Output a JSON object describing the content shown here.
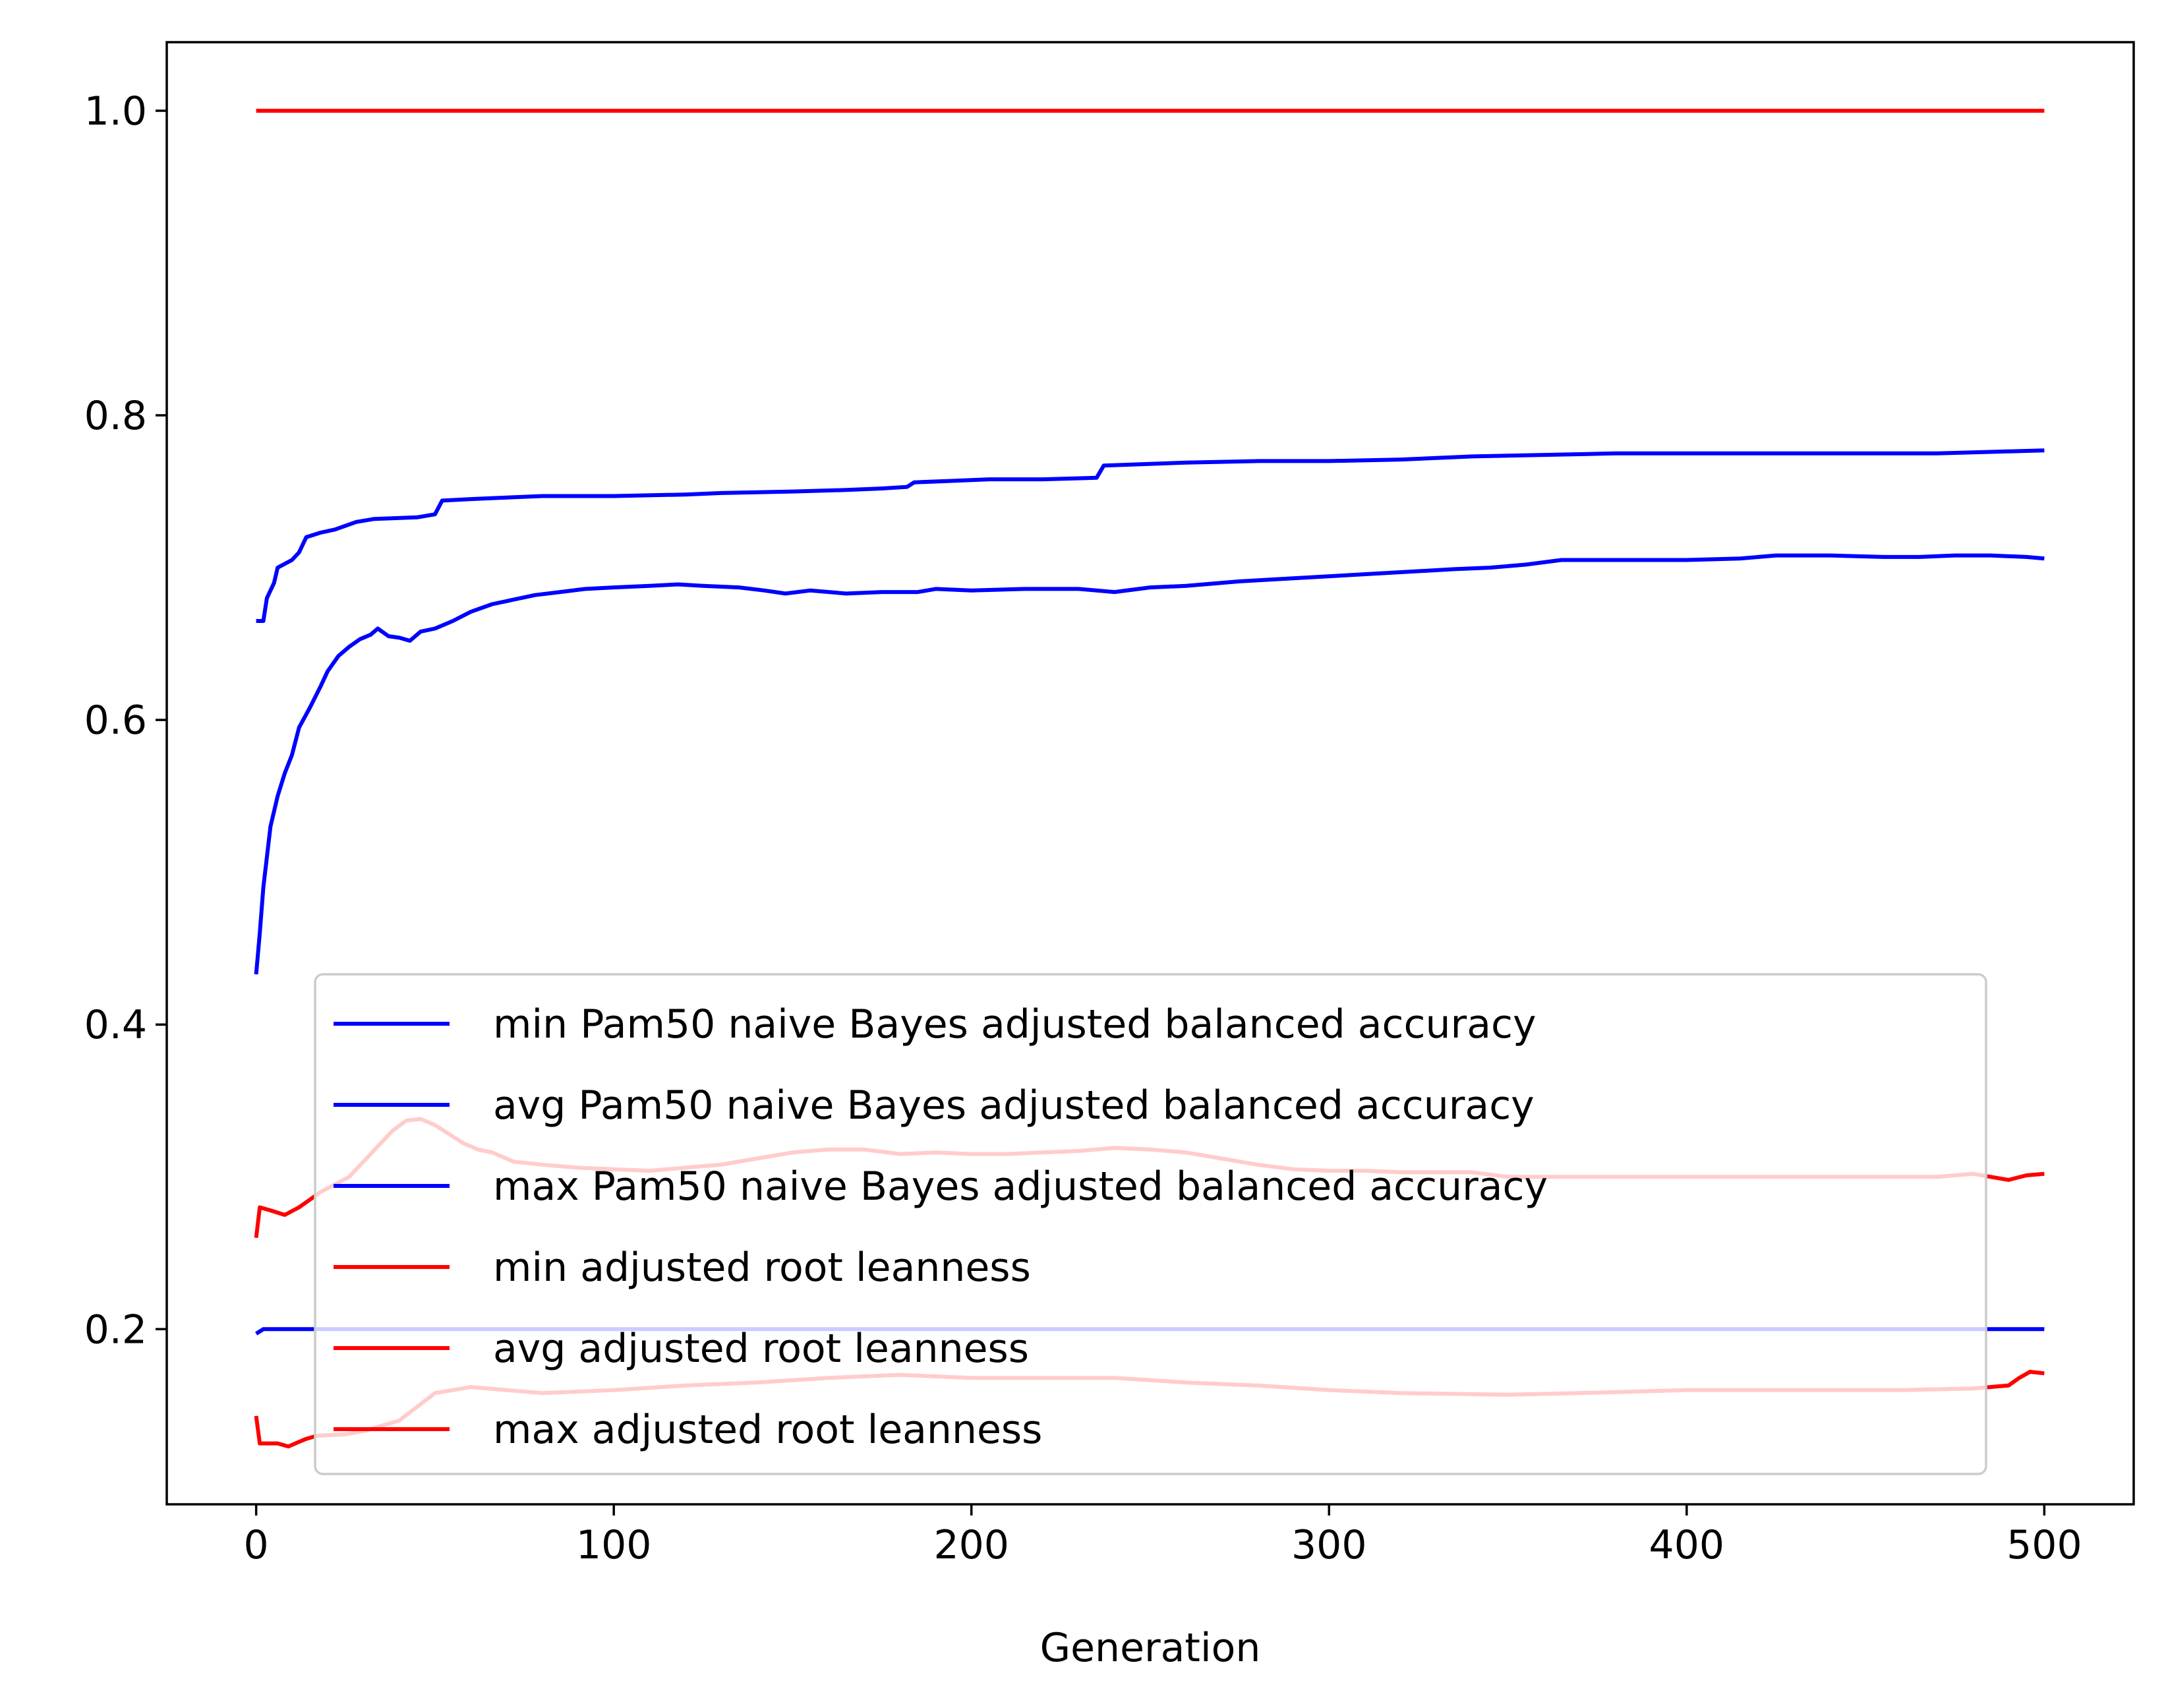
{
  "chart_data": {
    "type": "line",
    "xlabel": "Generation",
    "ylabel": "",
    "title": "",
    "xlim": [
      -25,
      525
    ],
    "ylim": [
      0.085,
      1.045
    ],
    "xticks": [
      0,
      100,
      200,
      300,
      400,
      500
    ],
    "yticks": [
      0.2,
      0.4,
      0.6,
      0.8,
      1.0
    ],
    "xtick_labels": [
      "0",
      "100",
      "200",
      "300",
      "400",
      "500"
    ],
    "ytick_labels": [
      "0.2",
      "0.4",
      "0.6",
      "0.8",
      "1.0"
    ],
    "grid": false,
    "legend_position": "lower center",
    "series": [
      {
        "name": "min Pam50 naive Bayes adjusted balanced accuracy",
        "color": "#0000ff",
        "points": [
          [
            0,
            0.197
          ],
          [
            2,
            0.2
          ],
          [
            10,
            0.2
          ],
          [
            60,
            0.2
          ],
          [
            200,
            0.2
          ],
          [
            400,
            0.2
          ],
          [
            500,
            0.2
          ]
        ]
      },
      {
        "name": "avg Pam50 naive Bayes adjusted balanced accuracy",
        "color": "#0000ff",
        "points": [
          [
            0,
            0.433
          ],
          [
            1,
            0.46
          ],
          [
            2,
            0.49
          ],
          [
            3,
            0.51
          ],
          [
            4,
            0.53
          ],
          [
            6,
            0.55
          ],
          [
            8,
            0.565
          ],
          [
            10,
            0.577
          ],
          [
            12,
            0.595
          ],
          [
            15,
            0.608
          ],
          [
            18,
            0.622
          ],
          [
            20,
            0.632
          ],
          [
            23,
            0.642
          ],
          [
            26,
            0.648
          ],
          [
            29,
            0.653
          ],
          [
            32,
            0.656
          ],
          [
            34,
            0.66
          ],
          [
            37,
            0.655
          ],
          [
            40,
            0.654
          ],
          [
            43,
            0.652
          ],
          [
            46,
            0.658
          ],
          [
            50,
            0.66
          ],
          [
            55,
            0.665
          ],
          [
            60,
            0.671
          ],
          [
            66,
            0.676
          ],
          [
            72,
            0.679
          ],
          [
            78,
            0.682
          ],
          [
            85,
            0.684
          ],
          [
            92,
            0.686
          ],
          [
            100,
            0.687
          ],
          [
            110,
            0.688
          ],
          [
            118,
            0.689
          ],
          [
            125,
            0.688
          ],
          [
            135,
            0.687
          ],
          [
            142,
            0.685
          ],
          [
            148,
            0.683
          ],
          [
            155,
            0.685
          ],
          [
            165,
            0.683
          ],
          [
            175,
            0.684
          ],
          [
            185,
            0.684
          ],
          [
            190,
            0.686
          ],
          [
            200,
            0.685
          ],
          [
            215,
            0.686
          ],
          [
            230,
            0.686
          ],
          [
            240,
            0.684
          ],
          [
            250,
            0.687
          ],
          [
            260,
            0.688
          ],
          [
            275,
            0.691
          ],
          [
            290,
            0.693
          ],
          [
            305,
            0.695
          ],
          [
            320,
            0.697
          ],
          [
            335,
            0.699
          ],
          [
            345,
            0.7
          ],
          [
            355,
            0.702
          ],
          [
            365,
            0.705
          ],
          [
            380,
            0.705
          ],
          [
            400,
            0.705
          ],
          [
            415,
            0.706
          ],
          [
            425,
            0.708
          ],
          [
            440,
            0.708
          ],
          [
            455,
            0.707
          ],
          [
            465,
            0.707
          ],
          [
            475,
            0.708
          ],
          [
            485,
            0.708
          ],
          [
            495,
            0.707
          ],
          [
            500,
            0.706
          ]
        ]
      },
      {
        "name": "max Pam50 naive Bayes adjusted balanced accuracy",
        "color": "#0000ff",
        "points": [
          [
            0,
            0.665
          ],
          [
            2,
            0.665
          ],
          [
            3,
            0.68
          ],
          [
            5,
            0.69
          ],
          [
            6,
            0.7
          ],
          [
            10,
            0.705
          ],
          [
            12,
            0.71
          ],
          [
            14,
            0.72
          ],
          [
            18,
            0.723
          ],
          [
            22,
            0.725
          ],
          [
            28,
            0.73
          ],
          [
            33,
            0.732
          ],
          [
            45,
            0.733
          ],
          [
            50,
            0.735
          ],
          [
            52,
            0.744
          ],
          [
            60,
            0.745
          ],
          [
            70,
            0.746
          ],
          [
            80,
            0.747
          ],
          [
            100,
            0.747
          ],
          [
            120,
            0.748
          ],
          [
            130,
            0.749
          ],
          [
            150,
            0.75
          ],
          [
            165,
            0.751
          ],
          [
            175,
            0.752
          ],
          [
            182,
            0.753
          ],
          [
            184,
            0.756
          ],
          [
            195,
            0.757
          ],
          [
            205,
            0.758
          ],
          [
            220,
            0.758
          ],
          [
            235,
            0.759
          ],
          [
            237,
            0.767
          ],
          [
            260,
            0.769
          ],
          [
            280,
            0.77
          ],
          [
            300,
            0.77
          ],
          [
            320,
            0.771
          ],
          [
            340,
            0.773
          ],
          [
            360,
            0.774
          ],
          [
            380,
            0.775
          ],
          [
            400,
            0.775
          ],
          [
            420,
            0.775
          ],
          [
            440,
            0.775
          ],
          [
            470,
            0.775
          ],
          [
            485,
            0.776
          ],
          [
            500,
            0.777
          ]
        ]
      },
      {
        "name": "min adjusted root leanness",
        "color": "#ff0000",
        "points": [
          [
            0,
            0.143
          ],
          [
            1,
            0.125
          ],
          [
            6,
            0.125
          ],
          [
            9,
            0.123
          ],
          [
            12,
            0.126
          ],
          [
            14,
            0.128
          ],
          [
            17,
            0.13
          ],
          [
            25,
            0.131
          ],
          [
            30,
            0.133
          ],
          [
            40,
            0.14
          ],
          [
            50,
            0.158
          ],
          [
            60,
            0.162
          ],
          [
            70,
            0.16
          ],
          [
            80,
            0.158
          ],
          [
            100,
            0.16
          ],
          [
            120,
            0.163
          ],
          [
            140,
            0.165
          ],
          [
            160,
            0.168
          ],
          [
            180,
            0.17
          ],
          [
            200,
            0.168
          ],
          [
            220,
            0.168
          ],
          [
            240,
            0.168
          ],
          [
            260,
            0.165
          ],
          [
            280,
            0.163
          ],
          [
            300,
            0.16
          ],
          [
            320,
            0.158
          ],
          [
            350,
            0.157
          ],
          [
            370,
            0.158
          ],
          [
            400,
            0.16
          ],
          [
            430,
            0.16
          ],
          [
            460,
            0.16
          ],
          [
            480,
            0.161
          ],
          [
            490,
            0.163
          ],
          [
            493,
            0.168
          ],
          [
            496,
            0.172
          ],
          [
            500,
            0.171
          ]
        ]
      },
      {
        "name": "avg adjusted root leanness",
        "color": "#ff0000",
        "points": [
          [
            0,
            0.26
          ],
          [
            1,
            0.28
          ],
          [
            4,
            0.278
          ],
          [
            8,
            0.275
          ],
          [
            12,
            0.28
          ],
          [
            15,
            0.285
          ],
          [
            18,
            0.29
          ],
          [
            22,
            0.295
          ],
          [
            26,
            0.3
          ],
          [
            30,
            0.31
          ],
          [
            34,
            0.32
          ],
          [
            38,
            0.33
          ],
          [
            42,
            0.337
          ],
          [
            46,
            0.338
          ],
          [
            50,
            0.334
          ],
          [
            54,
            0.328
          ],
          [
            58,
            0.322
          ],
          [
            62,
            0.318
          ],
          [
            66,
            0.316
          ],
          [
            72,
            0.31
          ],
          [
            80,
            0.308
          ],
          [
            90,
            0.306
          ],
          [
            100,
            0.305
          ],
          [
            110,
            0.304
          ],
          [
            120,
            0.306
          ],
          [
            130,
            0.308
          ],
          [
            140,
            0.312
          ],
          [
            150,
            0.316
          ],
          [
            160,
            0.318
          ],
          [
            170,
            0.318
          ],
          [
            180,
            0.315
          ],
          [
            190,
            0.316
          ],
          [
            200,
            0.315
          ],
          [
            210,
            0.315
          ],
          [
            220,
            0.316
          ],
          [
            230,
            0.317
          ],
          [
            240,
            0.319
          ],
          [
            250,
            0.318
          ],
          [
            260,
            0.316
          ],
          [
            270,
            0.312
          ],
          [
            280,
            0.308
          ],
          [
            290,
            0.305
          ],
          [
            300,
            0.304
          ],
          [
            310,
            0.304
          ],
          [
            320,
            0.303
          ],
          [
            330,
            0.303
          ],
          [
            340,
            0.303
          ],
          [
            350,
            0.3
          ],
          [
            360,
            0.3
          ],
          [
            380,
            0.3
          ],
          [
            400,
            0.3
          ],
          [
            420,
            0.3
          ],
          [
            440,
            0.3
          ],
          [
            460,
            0.3
          ],
          [
            470,
            0.3
          ],
          [
            480,
            0.302
          ],
          [
            490,
            0.298
          ],
          [
            495,
            0.301
          ],
          [
            500,
            0.302
          ]
        ]
      },
      {
        "name": "max adjusted root leanness",
        "color": "#ff0000",
        "points": [
          [
            0,
            1.0
          ],
          [
            100,
            1.0
          ],
          [
            200,
            1.0
          ],
          [
            300,
            1.0
          ],
          [
            400,
            1.0
          ],
          [
            500,
            1.0
          ]
        ]
      }
    ]
  }
}
